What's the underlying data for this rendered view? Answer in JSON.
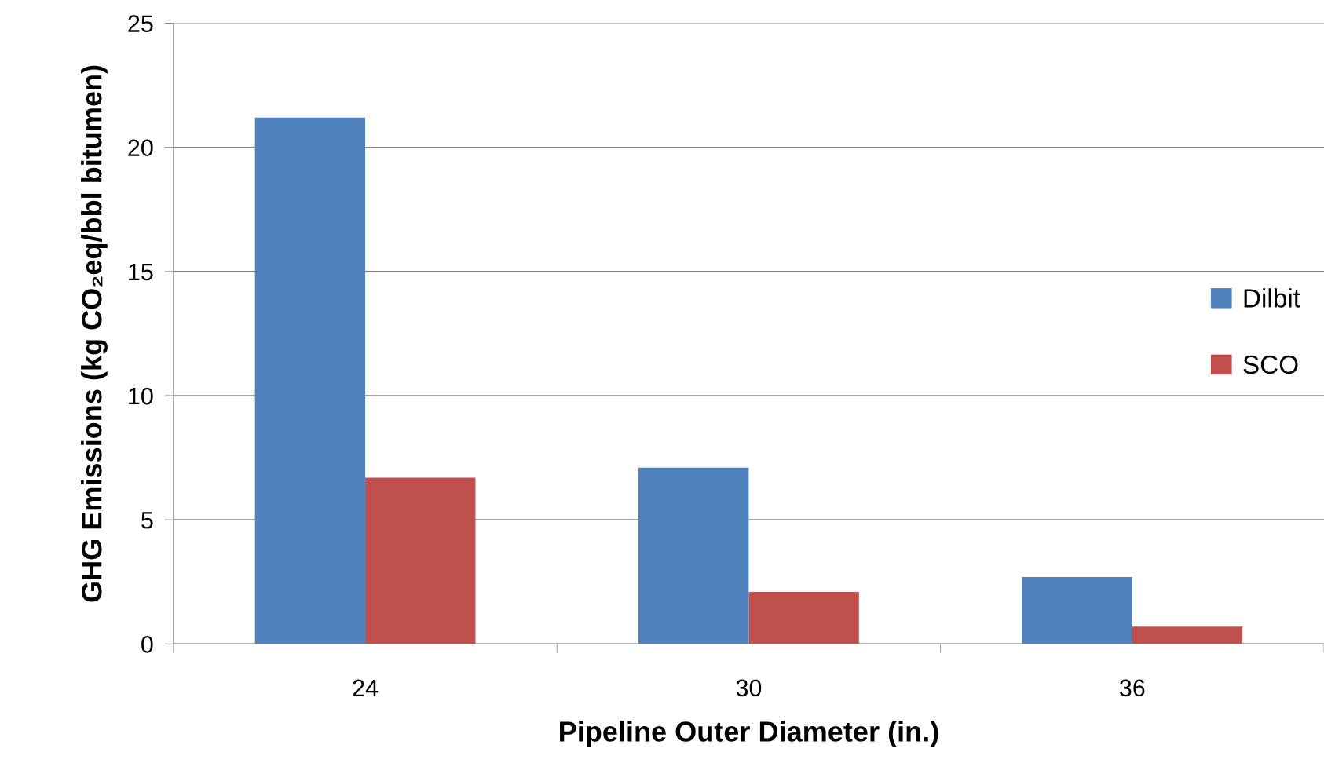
{
  "chart_data": {
    "type": "bar",
    "xlabel": "Pipeline Outer Diameter (in.)",
    "ylabel": "GHG Emissions (kg CO₂eq/bbl bitumen)",
    "categories": [
      "24",
      "30",
      "36"
    ],
    "series": [
      {
        "name": "Dilbit",
        "color": "#4f81bd",
        "values": [
          21.2,
          7.1,
          2.7
        ]
      },
      {
        "name": "SCO",
        "color": "#c0504d",
        "values": [
          6.7,
          2.1,
          0.7
        ]
      }
    ],
    "ylim": [
      0,
      25
    ],
    "yticks": [
      0,
      5,
      10,
      15,
      20,
      25
    ],
    "grid": "y",
    "legend": "right"
  }
}
